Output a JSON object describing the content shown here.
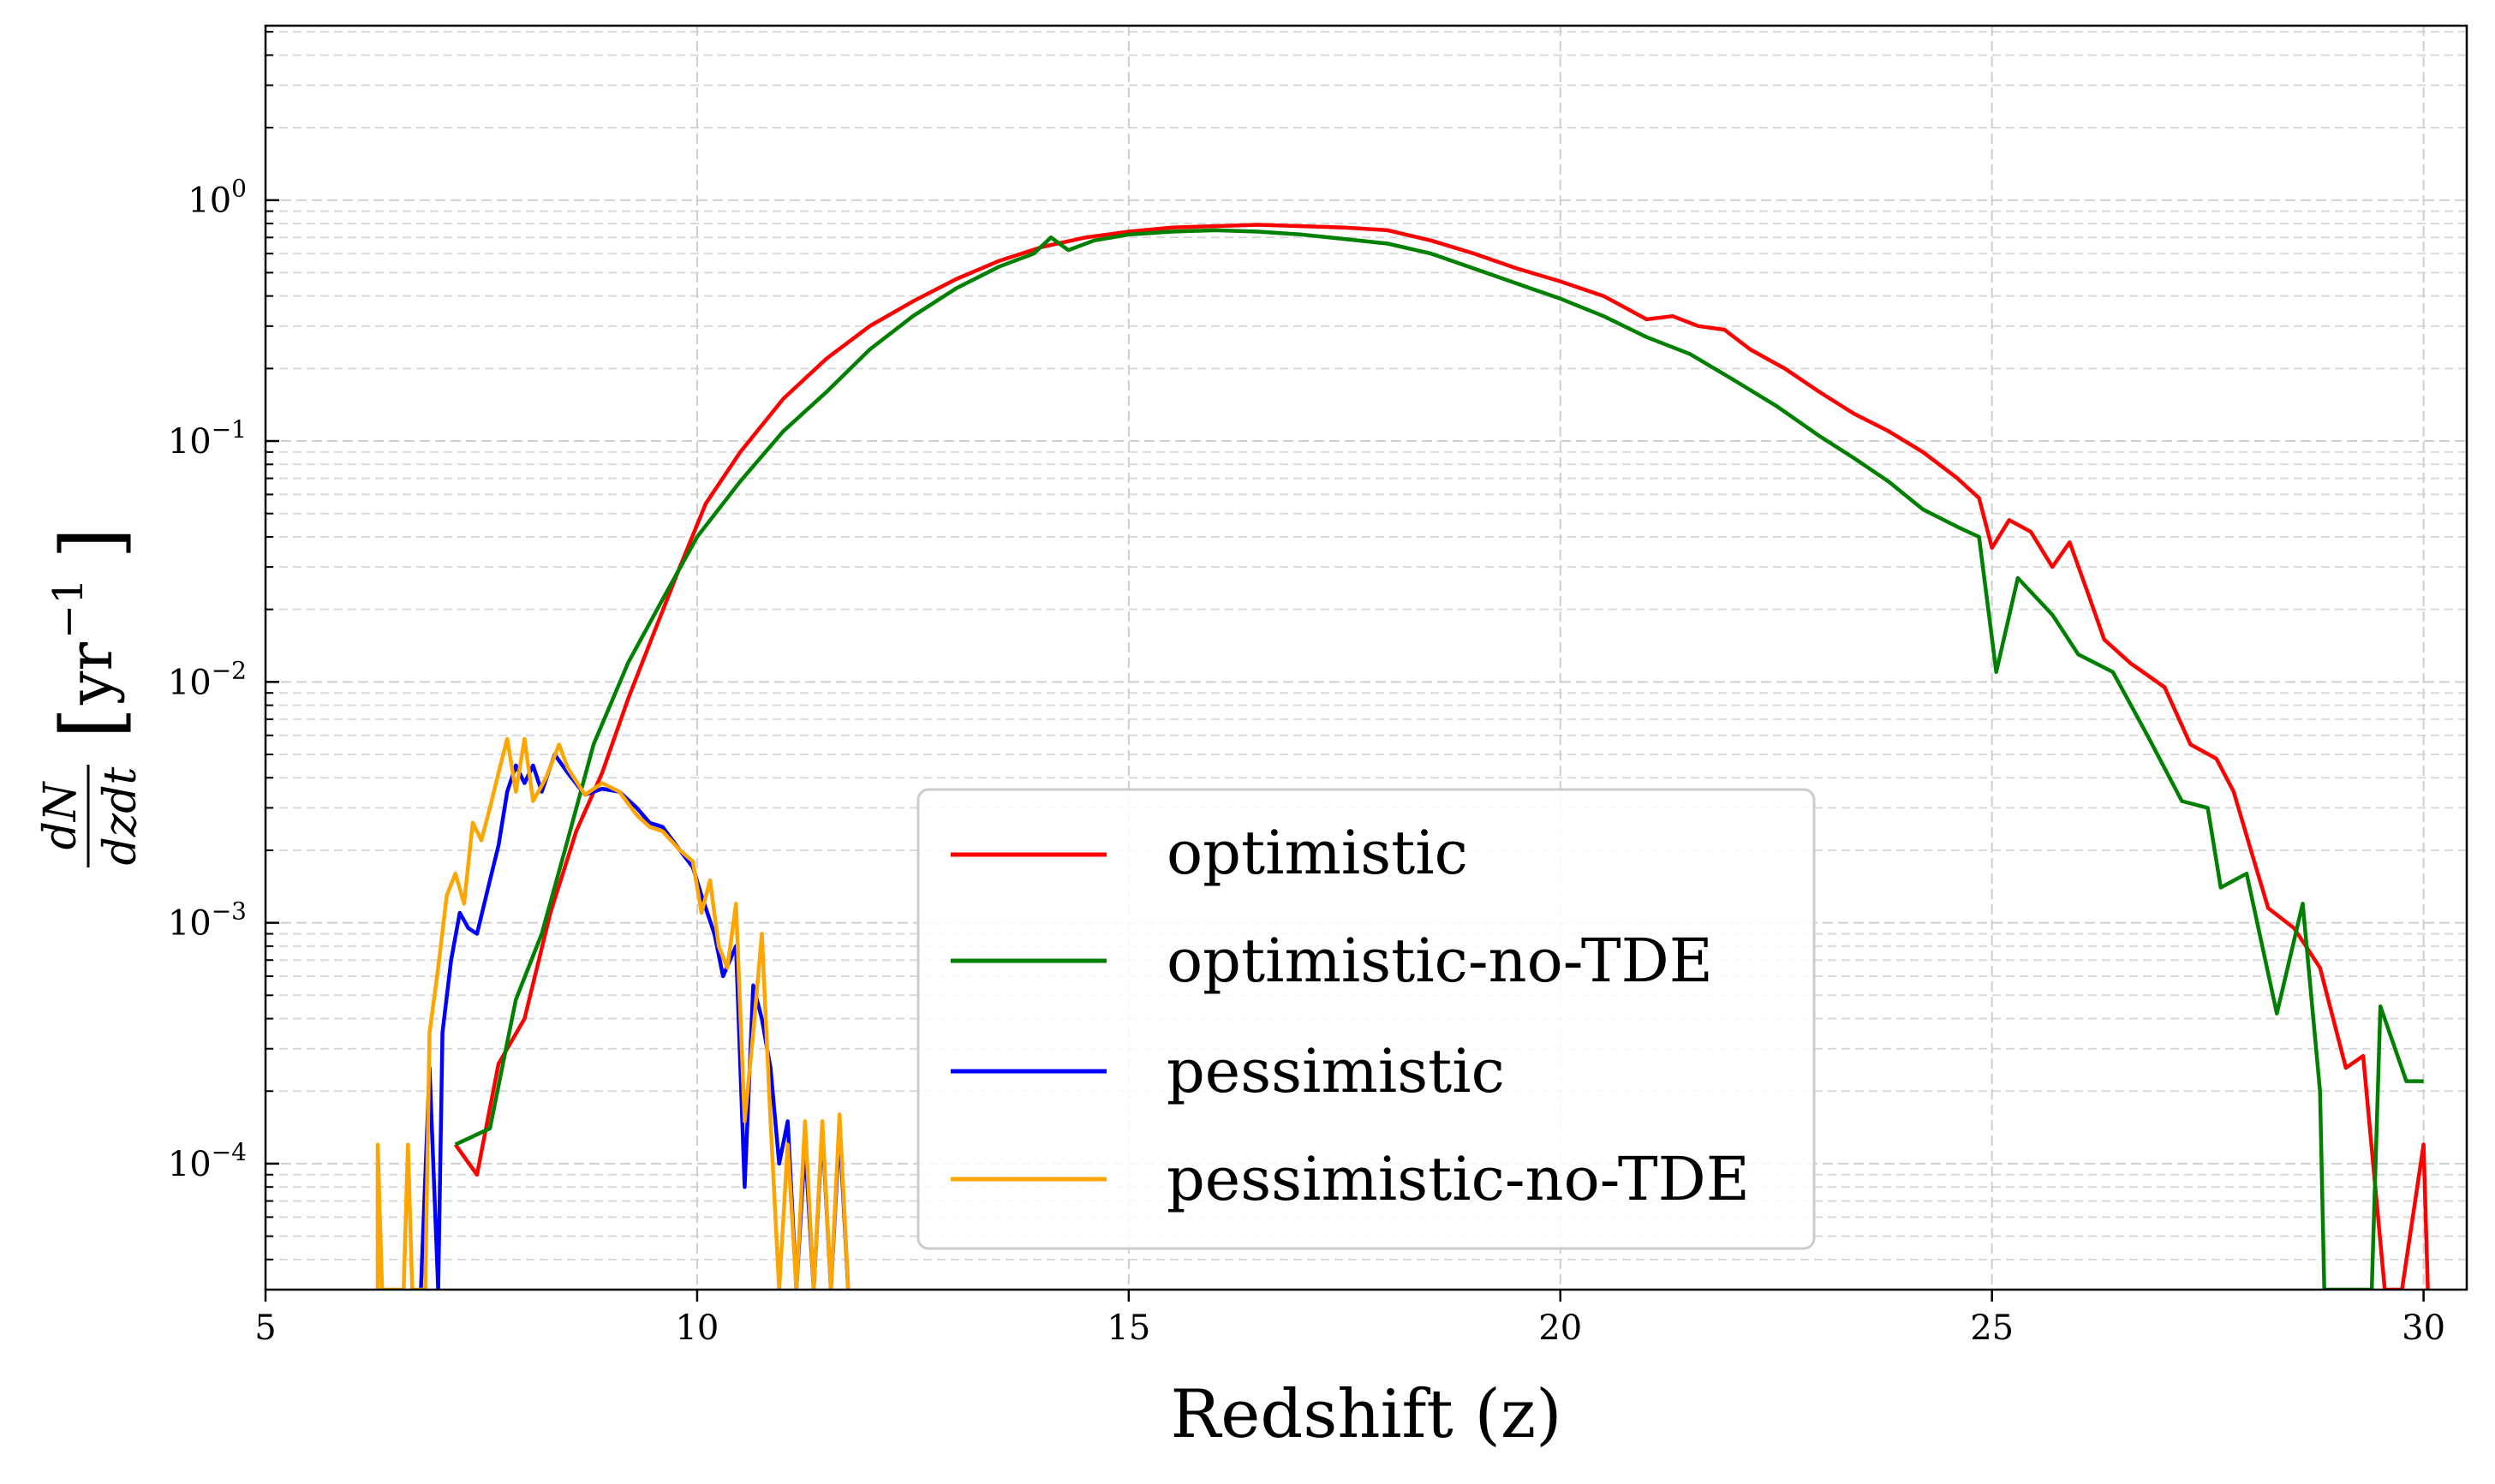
{
  "chart_data": {
    "type": "line",
    "title": "",
    "xlabel": "Redshift (z)",
    "ylabel_main": "dN",
    "ylabel_denom": "dzdt",
    "ylabel_unit": "yr",
    "ylabel_unit_exp": "−1",
    "xscale": "linear",
    "yscale": "log",
    "xlim": [
      5,
      30.5
    ],
    "ylim": [
      3e-05,
      5.3
    ],
    "grid": true,
    "legend_position": "lower-center",
    "x_ticks": [
      {
        "value": 5,
        "label": "5"
      },
      {
        "value": 10,
        "label": "10"
      },
      {
        "value": 15,
        "label": "15"
      },
      {
        "value": 20,
        "label": "20"
      },
      {
        "value": 25,
        "label": "25"
      },
      {
        "value": 30,
        "label": "30"
      }
    ],
    "y_ticks": [
      {
        "exp": -4,
        "base": "10",
        "sup": "−4"
      },
      {
        "exp": -3,
        "base": "10",
        "sup": "−3"
      },
      {
        "exp": -2,
        "base": "10",
        "sup": "−2"
      },
      {
        "exp": -1,
        "base": "10",
        "sup": "−1"
      },
      {
        "exp": 0,
        "base": "10",
        "sup": "0"
      }
    ],
    "series": [
      {
        "name": "optimistic",
        "color": "#ff0000",
        "points": [
          [
            7.2,
            0.00012
          ],
          [
            7.45,
            9e-05
          ],
          [
            7.7,
            0.00026
          ],
          [
            8.0,
            0.0004
          ],
          [
            8.3,
            0.0011
          ],
          [
            8.6,
            0.0024
          ],
          [
            8.9,
            0.0042
          ],
          [
            9.2,
            0.0085
          ],
          [
            9.5,
            0.016
          ],
          [
            9.8,
            0.03
          ],
          [
            10.1,
            0.055
          ],
          [
            10.5,
            0.09
          ],
          [
            11.0,
            0.15
          ],
          [
            11.5,
            0.22
          ],
          [
            12.0,
            0.3
          ],
          [
            12.5,
            0.38
          ],
          [
            13.0,
            0.47
          ],
          [
            13.5,
            0.56
          ],
          [
            14.0,
            0.64
          ],
          [
            14.5,
            0.7
          ],
          [
            15.0,
            0.74
          ],
          [
            15.5,
            0.77
          ],
          [
            16.0,
            0.78
          ],
          [
            16.5,
            0.79
          ],
          [
            17.0,
            0.78
          ],
          [
            17.5,
            0.77
          ],
          [
            18.0,
            0.75
          ],
          [
            18.5,
            0.68
          ],
          [
            19.0,
            0.6
          ],
          [
            19.5,
            0.52
          ],
          [
            20.0,
            0.46
          ],
          [
            20.5,
            0.4
          ],
          [
            21.0,
            0.32
          ],
          [
            21.3,
            0.33
          ],
          [
            21.6,
            0.3
          ],
          [
            21.9,
            0.29
          ],
          [
            22.2,
            0.24
          ],
          [
            22.6,
            0.2
          ],
          [
            23.0,
            0.16
          ],
          [
            23.4,
            0.13
          ],
          [
            23.8,
            0.11
          ],
          [
            24.2,
            0.09
          ],
          [
            24.6,
            0.07
          ],
          [
            24.85,
            0.058
          ],
          [
            25.0,
            0.036
          ],
          [
            25.2,
            0.047
          ],
          [
            25.45,
            0.042
          ],
          [
            25.7,
            0.03
          ],
          [
            25.9,
            0.038
          ],
          [
            26.1,
            0.024
          ],
          [
            26.3,
            0.015
          ],
          [
            26.6,
            0.012
          ],
          [
            27.0,
            0.0095
          ],
          [
            27.3,
            0.0055
          ],
          [
            27.6,
            0.0048
          ],
          [
            27.8,
            0.0035
          ],
          [
            28.0,
            0.002
          ],
          [
            28.2,
            0.00115
          ],
          [
            28.5,
            0.00095
          ],
          [
            28.8,
            0.00065
          ],
          [
            29.1,
            0.00025
          ],
          [
            29.3,
            0.00028
          ],
          [
            29.55,
            3e-05
          ],
          [
            29.75,
            3e-05
          ],
          [
            30.0,
            0.00012
          ],
          [
            30.05,
            3e-05
          ]
        ]
      },
      {
        "name": "optimistic-no-TDE",
        "color": "#008000",
        "points": [
          [
            7.2,
            0.00012
          ],
          [
            7.6,
            0.00014
          ],
          [
            7.9,
            0.00048
          ],
          [
            8.2,
            0.0009
          ],
          [
            8.5,
            0.0022
          ],
          [
            8.8,
            0.0055
          ],
          [
            9.2,
            0.012
          ],
          [
            9.6,
            0.022
          ],
          [
            10.0,
            0.04
          ],
          [
            10.5,
            0.068
          ],
          [
            11.0,
            0.11
          ],
          [
            11.5,
            0.16
          ],
          [
            12.0,
            0.24
          ],
          [
            12.5,
            0.33
          ],
          [
            13.0,
            0.43
          ],
          [
            13.5,
            0.53
          ],
          [
            13.9,
            0.6
          ],
          [
            14.1,
            0.7
          ],
          [
            14.3,
            0.62
          ],
          [
            14.6,
            0.68
          ],
          [
            15.0,
            0.72
          ],
          [
            15.5,
            0.74
          ],
          [
            16.0,
            0.75
          ],
          [
            16.5,
            0.74
          ],
          [
            17.0,
            0.72
          ],
          [
            17.5,
            0.69
          ],
          [
            18.0,
            0.66
          ],
          [
            18.5,
            0.6
          ],
          [
            19.0,
            0.52
          ],
          [
            19.5,
            0.45
          ],
          [
            20.0,
            0.39
          ],
          [
            20.5,
            0.33
          ],
          [
            21.0,
            0.27
          ],
          [
            21.5,
            0.23
          ],
          [
            22.0,
            0.18
          ],
          [
            22.5,
            0.14
          ],
          [
            23.0,
            0.105
          ],
          [
            23.4,
            0.085
          ],
          [
            23.8,
            0.068
          ],
          [
            24.2,
            0.052
          ],
          [
            24.6,
            0.044
          ],
          [
            24.85,
            0.04
          ],
          [
            25.05,
            0.011
          ],
          [
            25.3,
            0.027
          ],
          [
            25.7,
            0.019
          ],
          [
            26.0,
            0.013
          ],
          [
            26.4,
            0.011
          ],
          [
            26.8,
            0.006
          ],
          [
            27.2,
            0.0032
          ],
          [
            27.5,
            0.003
          ],
          [
            27.65,
            0.0014
          ],
          [
            27.95,
            0.0016
          ],
          [
            28.3,
            0.00042
          ],
          [
            28.6,
            0.0012
          ],
          [
            28.8,
            0.0002
          ],
          [
            28.85,
            3e-05
          ],
          [
            29.4,
            3e-05
          ],
          [
            29.5,
            0.00045
          ],
          [
            29.8,
            0.00022
          ],
          [
            30.0,
            0.00022
          ]
        ]
      },
      {
        "name": "pessimistic",
        "color": "#0000ff",
        "points": [
          [
            6.8,
            3e-05
          ],
          [
            6.9,
            0.00025
          ],
          [
            7.0,
            3e-05
          ],
          [
            7.05,
            0.00035
          ],
          [
            7.15,
            0.0007
          ],
          [
            7.25,
            0.0011
          ],
          [
            7.35,
            0.00095
          ],
          [
            7.45,
            0.0009
          ],
          [
            7.6,
            0.0015
          ],
          [
            7.7,
            0.0021
          ],
          [
            7.8,
            0.0035
          ],
          [
            7.9,
            0.0045
          ],
          [
            8.0,
            0.0038
          ],
          [
            8.1,
            0.0045
          ],
          [
            8.2,
            0.0035
          ],
          [
            8.35,
            0.005
          ],
          [
            8.5,
            0.0042
          ],
          [
            8.7,
            0.0034
          ],
          [
            8.9,
            0.0036
          ],
          [
            9.1,
            0.0035
          ],
          [
            9.3,
            0.003
          ],
          [
            9.45,
            0.0026
          ],
          [
            9.6,
            0.0025
          ],
          [
            9.8,
            0.002
          ],
          [
            9.95,
            0.0017
          ],
          [
            10.05,
            0.0013
          ],
          [
            10.2,
            0.0009
          ],
          [
            10.3,
            0.0006
          ],
          [
            10.45,
            0.0008
          ],
          [
            10.55,
            8e-05
          ],
          [
            10.65,
            0.00055
          ],
          [
            10.75,
            0.0004
          ],
          [
            10.85,
            0.00025
          ],
          [
            10.95,
            0.0001
          ],
          [
            11.05,
            0.00015
          ],
          [
            11.15,
            3e-05
          ],
          [
            11.25,
            0.00012
          ],
          [
            11.35,
            3e-05
          ],
          [
            11.45,
            0.00014
          ],
          [
            11.55,
            3e-05
          ],
          [
            11.65,
            0.00014
          ],
          [
            11.75,
            3e-05
          ]
        ]
      },
      {
        "name": "pessimistic-no-TDE",
        "color": "#ffa500",
        "points": [
          [
            6.3,
            3e-05
          ],
          [
            6.3,
            0.00012
          ],
          [
            6.35,
            3e-05
          ],
          [
            6.6,
            3e-05
          ],
          [
            6.65,
            0.00012
          ],
          [
            6.7,
            3e-05
          ],
          [
            6.85,
            3e-05
          ],
          [
            6.9,
            0.00035
          ],
          [
            7.0,
            0.00065
          ],
          [
            7.1,
            0.0013
          ],
          [
            7.2,
            0.0016
          ],
          [
            7.3,
            0.0012
          ],
          [
            7.4,
            0.0026
          ],
          [
            7.5,
            0.0022
          ],
          [
            7.6,
            0.003
          ],
          [
            7.7,
            0.0042
          ],
          [
            7.8,
            0.0058
          ],
          [
            7.9,
            0.0035
          ],
          [
            8.0,
            0.0058
          ],
          [
            8.1,
            0.0032
          ],
          [
            8.25,
            0.004
          ],
          [
            8.4,
            0.0055
          ],
          [
            8.5,
            0.0044
          ],
          [
            8.7,
            0.0034
          ],
          [
            8.9,
            0.0038
          ],
          [
            9.1,
            0.0035
          ],
          [
            9.3,
            0.0028
          ],
          [
            9.45,
            0.0025
          ],
          [
            9.6,
            0.0024
          ],
          [
            9.8,
            0.002
          ],
          [
            9.95,
            0.0018
          ],
          [
            10.05,
            0.0011
          ],
          [
            10.15,
            0.0015
          ],
          [
            10.25,
            0.0008
          ],
          [
            10.35,
            0.00065
          ],
          [
            10.45,
            0.0012
          ],
          [
            10.55,
            0.00015
          ],
          [
            10.65,
            0.00035
          ],
          [
            10.75,
            0.0009
          ],
          [
            10.85,
            0.00015
          ],
          [
            10.95,
            3e-05
          ],
          [
            11.05,
            0.00012
          ],
          [
            11.15,
            3e-05
          ],
          [
            11.25,
            0.00015
          ],
          [
            11.35,
            3e-05
          ],
          [
            11.45,
            0.00015
          ],
          [
            11.55,
            3e-05
          ],
          [
            11.65,
            0.00016
          ],
          [
            11.75,
            3e-05
          ]
        ]
      }
    ]
  }
}
